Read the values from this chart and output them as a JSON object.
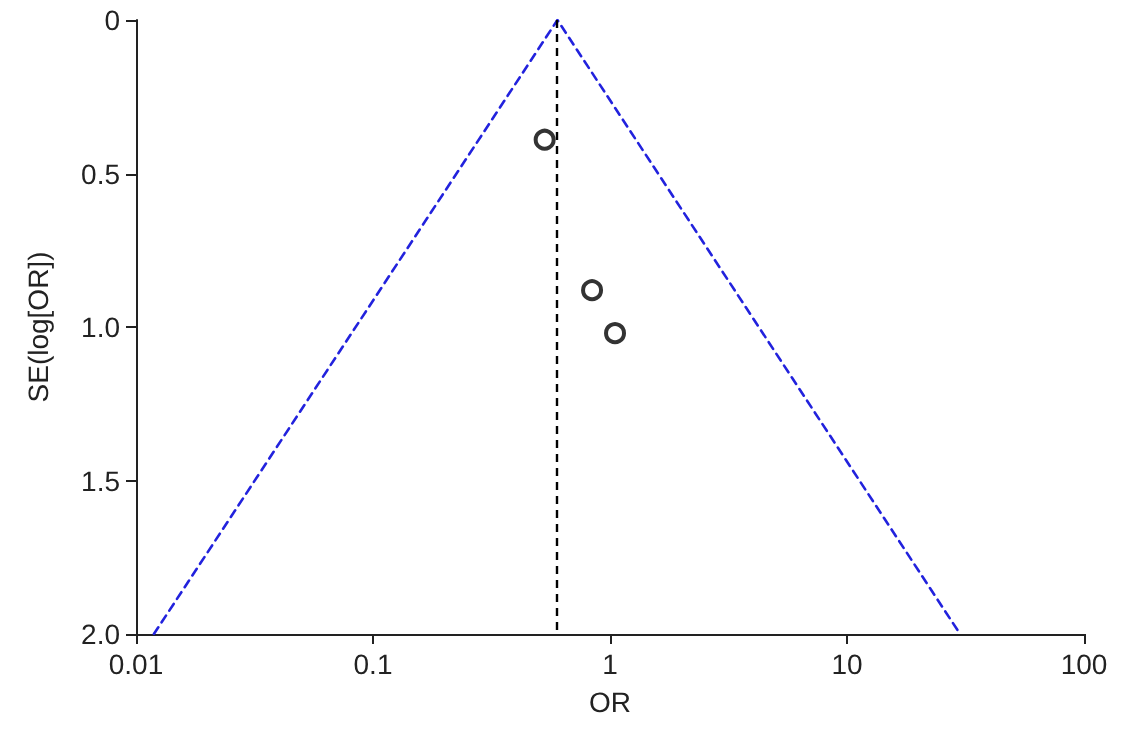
{
  "chart_data": {
    "type": "scatter",
    "xlabel": "OR",
    "ylabel": "SE(log[OR])",
    "log": "x",
    "grid": false,
    "xlim": [
      0.01,
      100
    ],
    "xticks": [
      0.01,
      0.1,
      1,
      10,
      100
    ],
    "ylim": [
      2,
      0
    ],
    "yticks": [
      0,
      0.5,
      {
        "value": 1,
        "label": "1.0"
      },
      1.5,
      {
        "value": 2,
        "label": "2.0"
      }
    ],
    "series": [
      {
        "type": "line",
        "color": "#2222dd",
        "line_style": "dashed",
        "marker": "none",
        "x": [
          0.0119,
          0.6,
          30
        ],
        "values": [
          2,
          0,
          2
        ]
      },
      {
        "type": "scatter",
        "color": "#000000",
        "marker": "circle",
        "x": [
          0.53,
          0.84,
          1.05
        ],
        "values": [
          0.39,
          0.88,
          1.02
        ]
      }
    ],
    "ref_lines": [
      {
        "axis": "x",
        "value": 0.6,
        "color": "#000000",
        "line_style": "dashed"
      }
    ]
  }
}
